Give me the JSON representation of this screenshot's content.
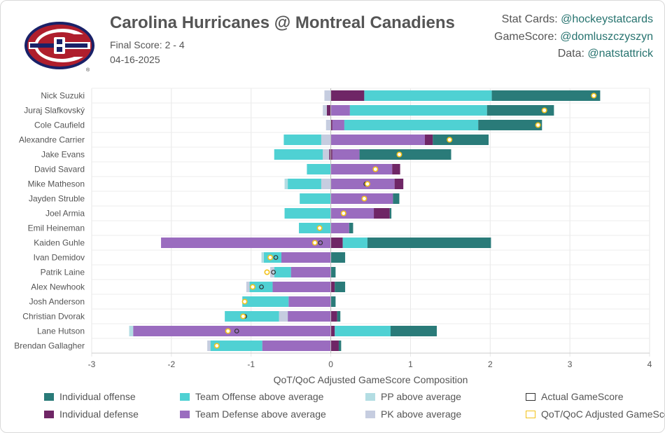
{
  "header": {
    "title": "Carolina Hurricanes @ Montreal Canadiens",
    "final_score": "Final Score: 2 - 4",
    "date": "04-16-2025",
    "logo_icon": "montreal-canadiens-logo-icon"
  },
  "credits": [
    {
      "label": "Stat Cards: ",
      "handle": "@hockeystatcards"
    },
    {
      "label": "GameScore: ",
      "handle": "@domluszczyszyn"
    },
    {
      "label": "Data: ",
      "handle": "@natstattrick"
    }
  ],
  "colors": {
    "individual_offense": "#2a7b79",
    "team_offense": "#4fd1d3",
    "pp": "#b3dde3",
    "individual_defense": "#6f2666",
    "team_defense": "#9a6cbf",
    "pk": "#c6cde0",
    "actual_marker": "#333333",
    "adjusted_marker": "#f2c21b"
  },
  "chart_data": {
    "type": "bar",
    "orientation": "horizontal-stacked-diverging",
    "xlabel": "QoT/QoC Adjusted GameScore Composition",
    "xlim": [
      -3,
      4
    ],
    "xticks": [
      -3,
      -2,
      -1,
      0,
      1,
      2,
      3,
      4
    ],
    "grid": true,
    "legend_position": "bottom",
    "components": [
      "individual_defense",
      "team_defense",
      "pk",
      "individual_offense",
      "team_offense",
      "pp"
    ],
    "legend": [
      {
        "key": "individual_offense",
        "label": "Individual offense",
        "kind": "fill"
      },
      {
        "key": "team_offense",
        "label": "Team Offense above average",
        "kind": "fill"
      },
      {
        "key": "pp",
        "label": "PP above average",
        "kind": "fill"
      },
      {
        "key": "actual",
        "label": "Actual GameScore",
        "kind": "outline-dark"
      },
      {
        "key": "individual_defense",
        "label": "Individual defense",
        "kind": "fill"
      },
      {
        "key": "team_defense",
        "label": "Team Defense above average",
        "kind": "fill"
      },
      {
        "key": "pk",
        "label": "PK above average",
        "kind": "fill"
      },
      {
        "key": "adjusted",
        "label": "QoT/QoC Adjusted GameScore",
        "kind": "outline-gold"
      }
    ],
    "players": [
      {
        "name": "Nick Suzuki",
        "pos": [
          [
            "individual_defense",
            0.42
          ],
          [
            "team_offense",
            1.6
          ],
          [
            "individual_offense",
            1.36
          ]
        ],
        "neg": [
          [
            "pk",
            0.08
          ]
        ],
        "actual": null,
        "adjusted": 3.3
      },
      {
        "name": "Juraj Slafkovský",
        "pos": [
          [
            "team_defense",
            0.24
          ],
          [
            "team_offense",
            1.72
          ],
          [
            "individual_offense",
            0.84
          ]
        ],
        "neg": [
          [
            "individual_defense",
            0.05
          ],
          [
            "pk",
            0.05
          ]
        ],
        "actual": null,
        "adjusted": 2.68
      },
      {
        "name": "Cole Caufield",
        "pos": [
          [
            "individual_defense",
            0.02
          ],
          [
            "team_defense",
            0.15
          ],
          [
            "team_offense",
            1.68
          ],
          [
            "individual_offense",
            0.8
          ]
        ],
        "neg": [
          [
            "pk",
            0.06
          ]
        ],
        "actual": null,
        "adjusted": 2.6
      },
      {
        "name": "Alexandre Carrier",
        "pos": [
          [
            "team_defense",
            1.18
          ],
          [
            "individual_defense",
            0.1
          ],
          [
            "individual_offense",
            0.7
          ]
        ],
        "neg": [
          [
            "pk",
            0.12
          ],
          [
            "team_offense",
            0.47
          ]
        ],
        "actual": null,
        "adjusted": 1.49
      },
      {
        "name": "Jake Evans",
        "pos": [
          [
            "individual_defense",
            0.02
          ],
          [
            "team_defense",
            0.34
          ],
          [
            "individual_offense",
            1.15
          ]
        ],
        "neg": [
          [
            "individual_defense",
            0.02
          ],
          [
            "pk",
            0.08
          ],
          [
            "team_offense",
            0.61
          ]
        ],
        "actual": null,
        "adjusted": 0.86
      },
      {
        "name": "David Savard",
        "pos": [
          [
            "team_defense",
            0.77
          ],
          [
            "individual_defense",
            0.1
          ]
        ],
        "neg": [
          [
            "team_offense",
            0.3
          ]
        ],
        "actual": null,
        "adjusted": 0.56
      },
      {
        "name": "Mike Matheson",
        "pos": [
          [
            "team_defense",
            0.8
          ],
          [
            "individual_defense",
            0.11
          ]
        ],
        "neg": [
          [
            "pk",
            0.12
          ],
          [
            "team_offense",
            0.42
          ],
          [
            "pp",
            0.04
          ]
        ],
        "actual": 0.44,
        "adjusted": 0.46
      },
      {
        "name": "Jayden Struble",
        "pos": [
          [
            "team_defense",
            0.78
          ],
          [
            "individual_offense",
            0.08
          ]
        ],
        "neg": [
          [
            "team_offense",
            0.39
          ]
        ],
        "actual": null,
        "adjusted": 0.42
      },
      {
        "name": "Joel Armia",
        "pos": [
          [
            "team_defense",
            0.54
          ],
          [
            "individual_defense",
            0.2
          ],
          [
            "individual_offense",
            0.02
          ]
        ],
        "neg": [
          [
            "team_offense",
            0.58
          ]
        ],
        "actual": null,
        "adjusted": 0.16
      },
      {
        "name": "Emil Heineman",
        "pos": [
          [
            "team_defense",
            0.23
          ],
          [
            "individual_offense",
            0.05
          ]
        ],
        "neg": [
          [
            "team_offense",
            0.4
          ]
        ],
        "actual": null,
        "adjusted": -0.14
      },
      {
        "name": "Kaiden Guhle",
        "pos": [
          [
            "individual_defense",
            0.15
          ],
          [
            "team_offense",
            0.31
          ],
          [
            "individual_offense",
            1.55
          ]
        ],
        "neg": [
          [
            "team_defense",
            2.13
          ]
        ],
        "actual": -0.13,
        "adjusted": -0.2
      },
      {
        "name": "Ivan Demidov",
        "pos": [
          [
            "individual_offense",
            0.18
          ]
        ],
        "neg": [
          [
            "team_defense",
            0.62
          ],
          [
            "team_offense",
            0.22
          ],
          [
            "pp",
            0.03
          ]
        ],
        "actual": -0.69,
        "adjusted": -0.76
      },
      {
        "name": "Patrik Laine",
        "pos": [
          [
            "individual_offense",
            0.06
          ]
        ],
        "neg": [
          [
            "team_defense",
            0.5
          ],
          [
            "team_offense",
            0.21
          ],
          [
            "pk",
            0.05
          ]
        ],
        "actual": -0.72,
        "adjusted": -0.8
      },
      {
        "name": "Alex Newhook",
        "pos": [
          [
            "individual_defense",
            0.05
          ],
          [
            "individual_offense",
            0.13
          ]
        ],
        "neg": [
          [
            "team_defense",
            0.73
          ],
          [
            "team_offense",
            0.29
          ],
          [
            "pk",
            0.04
          ]
        ],
        "actual": -0.87,
        "adjusted": -0.98
      },
      {
        "name": "Josh Anderson",
        "pos": [
          [
            "individual_offense",
            0.06
          ]
        ],
        "neg": [
          [
            "team_defense",
            0.53
          ],
          [
            "team_offense",
            0.58
          ]
        ],
        "actual": -1.08,
        "adjusted": -1.08
      },
      {
        "name": "Christian Dvorak",
        "pos": [
          [
            "individual_defense",
            0.08
          ],
          [
            "individual_offense",
            0.04
          ]
        ],
        "neg": [
          [
            "team_defense",
            0.54
          ],
          [
            "pk",
            0.11
          ],
          [
            "team_offense",
            0.68
          ]
        ],
        "actual": -1.08,
        "adjusted": -1.1
      },
      {
        "name": "Lane Hutson",
        "pos": [
          [
            "individual_defense",
            0.05
          ],
          [
            "team_offense",
            0.7
          ],
          [
            "individual_offense",
            0.58
          ]
        ],
        "neg": [
          [
            "team_defense",
            2.48
          ],
          [
            "pp",
            0.05
          ]
        ],
        "actual": -1.18,
        "adjusted": -1.29
      },
      {
        "name": "Brendan Gallagher",
        "pos": [
          [
            "individual_defense",
            0.1
          ],
          [
            "individual_offense",
            0.03
          ]
        ],
        "neg": [
          [
            "team_defense",
            0.86
          ],
          [
            "team_offense",
            0.65
          ],
          [
            "pk",
            0.04
          ]
        ],
        "actual": null,
        "adjusted": -1.43
      }
    ]
  }
}
